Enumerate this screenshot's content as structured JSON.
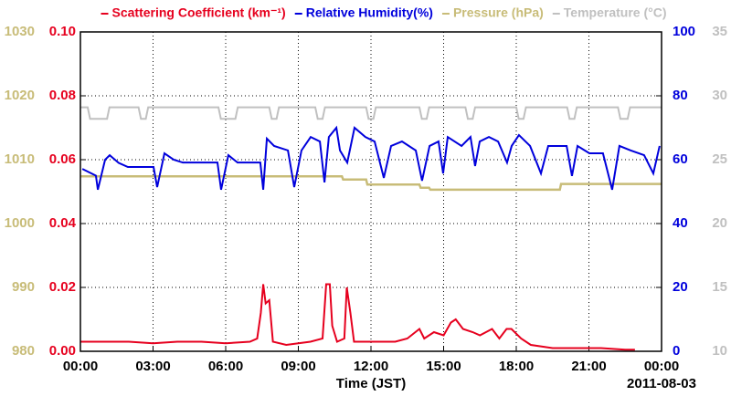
{
  "chart_data": {
    "type": "line",
    "xlabel": "Time (JST)",
    "annotation": "2011-08-03",
    "xlim": [
      0,
      24
    ],
    "xticks": [
      {
        "value": 0,
        "label": "00:00"
      },
      {
        "value": 3,
        "label": "03:00"
      },
      {
        "value": 6,
        "label": "06:00"
      },
      {
        "value": 9,
        "label": "09:00"
      },
      {
        "value": 12,
        "label": "12:00"
      },
      {
        "value": 15,
        "label": "15:00"
      },
      {
        "value": 18,
        "label": "18:00"
      },
      {
        "value": 21,
        "label": "21:00"
      },
      {
        "value": 24,
        "label": "00:00"
      }
    ],
    "ylim": [
      0,
      0.1
    ],
    "yticks": [
      {
        "value": 0,
        "label": "0.00"
      },
      {
        "value": 0.02,
        "label": "0.02"
      },
      {
        "value": 0.04,
        "label": "0.04"
      },
      {
        "value": 0.06,
        "label": "0.06"
      },
      {
        "value": 0.08,
        "label": "0.08"
      },
      {
        "value": 0.1,
        "label": "0.10"
      }
    ],
    "y2lim": [
      0,
      100
    ],
    "y2ticks": [
      0,
      20,
      40,
      60,
      80,
      100
    ],
    "y3lim": [
      980,
      1030
    ],
    "y3ticks": [
      980,
      990,
      1000,
      1010,
      1020,
      1030
    ],
    "y4lim": [
      10,
      35
    ],
    "y4ticks": [
      10,
      15,
      20,
      25,
      30,
      35
    ],
    "grid": true,
    "series": [
      {
        "name": "Scattering Coefficient (km⁻¹)",
        "color": "#e6001e",
        "axis": "y",
        "x": [
          0,
          1,
          2,
          3,
          4,
          5,
          6,
          7,
          7.3,
          7.45,
          7.55,
          7.65,
          7.8,
          7.95,
          8.5,
          9.5,
          10.0,
          10.15,
          10.3,
          10.4,
          10.6,
          10.9,
          11.0,
          11.15,
          11.3,
          12,
          13,
          13.5,
          14.0,
          14.2,
          14.6,
          15.0,
          15.3,
          15.5,
          15.8,
          16.2,
          16.5,
          17,
          17.3,
          17.6,
          17.8,
          18.2,
          18.6,
          19.5,
          20.5,
          21.5,
          22.5,
          22.9
        ],
        "values": [
          0.003,
          0.003,
          0.003,
          0.0025,
          0.003,
          0.003,
          0.0025,
          0.003,
          0.004,
          0.012,
          0.021,
          0.015,
          0.016,
          0.003,
          0.002,
          0.003,
          0.004,
          0.021,
          0.021,
          0.008,
          0.003,
          0.004,
          0.02,
          0.012,
          0.003,
          0.003,
          0.003,
          0.004,
          0.007,
          0.004,
          0.006,
          0.005,
          0.009,
          0.01,
          0.007,
          0.006,
          0.005,
          0.007,
          0.004,
          0.007,
          0.007,
          0.004,
          0.002,
          0.001,
          0.001,
          0.001,
          0.0005,
          0.0005
        ]
      },
      {
        "name": "Relative Humidity(%)",
        "color": "#0000dc",
        "axis": "y2",
        "x": [
          0.08,
          0.64,
          0.72,
          1.02,
          1.21,
          1.58,
          1.96,
          3.02,
          3.17,
          3.47,
          3.85,
          4.23,
          5.66,
          5.81,
          6.11,
          6.49,
          7.43,
          7.55,
          7.7,
          8.0,
          8.57,
          8.83,
          9.13,
          9.51,
          9.89,
          10.08,
          10.26,
          10.57,
          10.72,
          11.02,
          11.32,
          11.77,
          12.15,
          12.53,
          12.83,
          13.28,
          13.85,
          14.11,
          14.42,
          14.79,
          14.98,
          15.17,
          15.74,
          16.11,
          16.3,
          16.49,
          16.87,
          17.25,
          17.62,
          17.81,
          18.11,
          18.57,
          19.02,
          19.32,
          20.08,
          20.3,
          20.53,
          21.02,
          21.58,
          21.96,
          22.26,
          22.72,
          23.28,
          23.66,
          23.92
        ],
        "values": [
          57.1,
          55,
          50.6,
          60,
          61.4,
          59,
          57.7,
          57.7,
          51.4,
          62,
          60,
          59.1,
          59.1,
          50.6,
          61.4,
          59.1,
          59.1,
          50.6,
          66.6,
          64.3,
          62.9,
          51.4,
          62.9,
          67.1,
          65.7,
          52.9,
          67.1,
          70,
          62.9,
          59.1,
          70,
          67.1,
          65.7,
          54.3,
          64.3,
          65.7,
          62.9,
          53.4,
          64.3,
          65.7,
          55.7,
          67.1,
          64.3,
          67.1,
          58,
          65.7,
          67.1,
          65.7,
          59.1,
          64.3,
          67.7,
          64.3,
          55.7,
          64.3,
          64.3,
          54.9,
          64.3,
          62,
          62,
          50.6,
          64.3,
          62.9,
          61.4,
          55.7,
          64.3
        ]
      },
      {
        "name": "Pressure (hPa)",
        "color": "#c8bc78",
        "axis": "y3",
        "x": [
          0,
          10.8,
          10.85,
          11.8,
          11.85,
          14.0,
          14.05,
          14.4,
          14.45,
          19.8,
          19.85,
          24
        ],
        "values": [
          1007.4,
          1007.4,
          1006.9,
          1006.9,
          1006.1,
          1006.1,
          1005.6,
          1005.6,
          1005.3,
          1005.3,
          1006.2,
          1006.2
        ]
      },
      {
        "name": "Temperature (°C)",
        "color": "#c0c0c0",
        "axis": "y4",
        "x": [
          0,
          0.3,
          0.4,
          1.1,
          1.2,
          2.4,
          2.5,
          2.7,
          2.8,
          5.7,
          5.8,
          6.4,
          6.5,
          7.8,
          7.9,
          8.1,
          8.2,
          9.7,
          9.8,
          10.0,
          10.1,
          11.8,
          11.9,
          12.1,
          12.2,
          14.0,
          14.1,
          14.3,
          14.4,
          15.9,
          16.0,
          16.2,
          16.3,
          18.0,
          18.1,
          18.3,
          18.4,
          20.1,
          20.2,
          20.4,
          20.5,
          22.2,
          22.3,
          22.6,
          22.7,
          24
        ],
        "values": [
          29.1,
          29.1,
          28.2,
          28.2,
          29.1,
          29.1,
          28.2,
          28.2,
          29.1,
          29.1,
          28.2,
          28.2,
          29.1,
          29.1,
          28.2,
          28.2,
          29.1,
          29.1,
          28.2,
          28.2,
          29.1,
          29.1,
          28.2,
          28.2,
          29.1,
          29.1,
          28.2,
          28.2,
          29.1,
          29.1,
          28.2,
          28.2,
          29.1,
          29.1,
          28.2,
          28.2,
          29.1,
          29.1,
          28.2,
          28.2,
          29.1,
          29.1,
          28.2,
          28.2,
          29.1,
          29.1
        ]
      }
    ]
  }
}
